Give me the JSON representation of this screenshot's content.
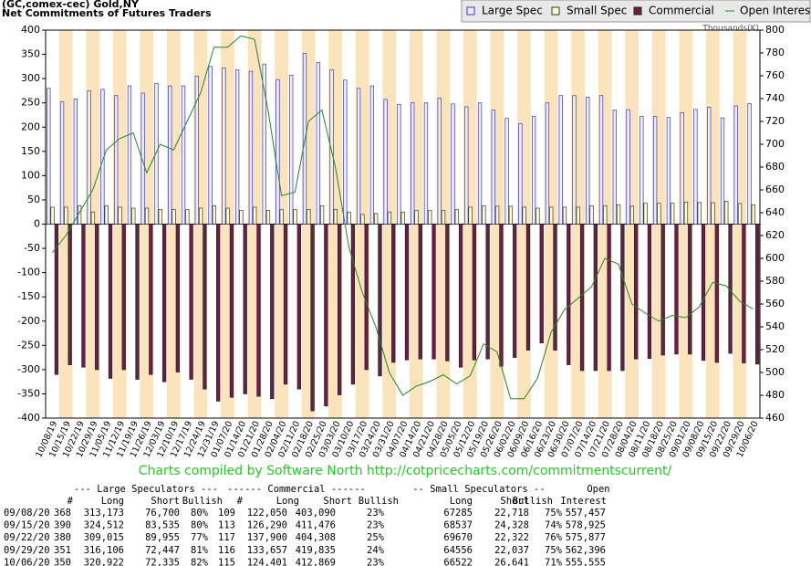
{
  "chart_data": {
    "type": "bar",
    "title": "(GC,comex-cec) Gold,NY",
    "subtitle": "Net Commitments of Futures Traders",
    "y2_label": "Thousands(K)",
    "credit": "Charts compiled by Software North  http://cotpricecharts.com/commitmentscurrent/",
    "categories": [
      "10/08/19",
      "10/15/19",
      "10/22/19",
      "10/29/19",
      "11/05/19",
      "11/12/19",
      "11/19/19",
      "11/26/19",
      "12/03/19",
      "12/10/19",
      "12/17/19",
      "12/24/19",
      "12/31/19",
      "01/07/20",
      "01/14/20",
      "01/21/20",
      "01/28/20",
      "02/04/20",
      "02/11/20",
      "02/18/20",
      "02/25/20",
      "03/03/20",
      "03/10/20",
      "03/17/20",
      "03/24/20",
      "03/31/20",
      "04/07/20",
      "04/14/20",
      "04/21/20",
      "04/28/20",
      "05/05/20",
      "05/12/20",
      "05/19/20",
      "05/26/20",
      "06/02/20",
      "06/09/20",
      "06/16/20",
      "06/23/20",
      "06/30/20",
      "07/07/20",
      "07/14/20",
      "07/21/20",
      "07/28/20",
      "08/04/20",
      "08/11/20",
      "08/18/20",
      "08/25/20",
      "09/01/20",
      "09/08/20",
      "09/15/20",
      "09/22/20",
      "09/29/20",
      "10/06/20"
    ],
    "series": [
      {
        "name": "Large Spec",
        "color": "#3333cc",
        "fill": "#eeeeff",
        "values": [
          280,
          252,
          258,
          275,
          278,
          265,
          285,
          270,
          290,
          285,
          285,
          305,
          325,
          322,
          318,
          315,
          330,
          298,
          307,
          352,
          333,
          318,
          297,
          280,
          285,
          257,
          247,
          250,
          250,
          260,
          248,
          242,
          250,
          235,
          218,
          207,
          222,
          250,
          265,
          265,
          262,
          265,
          235,
          236,
          222,
          222,
          220,
          230,
          236.5,
          241,
          219,
          243.7,
          248.6
        ]
      },
      {
        "name": "Small Spec",
        "color": "#333333",
        "fill": "#ffffcc",
        "values": [
          35,
          35,
          38,
          25,
          38,
          35,
          33,
          33,
          30,
          30,
          30,
          33,
          38,
          33,
          28,
          35,
          28,
          30,
          30,
          30,
          38,
          30,
          25,
          20,
          22,
          25,
          25,
          28,
          28,
          28,
          30,
          35,
          38,
          37,
          37,
          35,
          33,
          35,
          35,
          35,
          38,
          38,
          40,
          37,
          43,
          43,
          43,
          45,
          44.6,
          44.2,
          47.3,
          42.5,
          39.9
        ]
      },
      {
        "name": "Commercial",
        "color": "#222222",
        "fill": "#6b1f48",
        "values": [
          -310,
          -290,
          -295,
          -300,
          -318,
          -300,
          -320,
          -310,
          -325,
          -305,
          -320,
          -340,
          -365,
          -357,
          -350,
          -355,
          -360,
          -330,
          -340,
          -385,
          -375,
          -352,
          -330,
          -300,
          -313,
          -285,
          -280,
          -278,
          -278,
          -282,
          -295,
          -280,
          -278,
          -293,
          -275,
          -260,
          -245,
          -260,
          -290,
          -302,
          -302,
          -302,
          -302,
          -278,
          -277,
          -270,
          -268,
          -268,
          -281,
          -285.2,
          -266.4,
          -286.2,
          -288.5
        ]
      },
      {
        "name": "Open Interest",
        "color": "#228822",
        "type": "line",
        "axis": "y2",
        "values": [
          605,
          620,
          640,
          660,
          695,
          705,
          710,
          675,
          700,
          695,
          720,
          745,
          785,
          785,
          795,
          792,
          730,
          655,
          658,
          720,
          730,
          680,
          610,
          570,
          540,
          500,
          480,
          488,
          492,
          498,
          490,
          497,
          525,
          518,
          477,
          477,
          495,
          535,
          555,
          565,
          575,
          600,
          595,
          560,
          552,
          545,
          550,
          548,
          557.5,
          578.9,
          575.9,
          562.4,
          555.6
        ]
      }
    ],
    "ylim": [
      -400,
      400
    ],
    "yticks": [
      -400,
      -350,
      -300,
      -250,
      -200,
      -150,
      -100,
      -50,
      0,
      50,
      100,
      150,
      200,
      250,
      300,
      350,
      400
    ],
    "y2lim": [
      460,
      800
    ],
    "y2ticks": [
      460,
      480,
      500,
      520,
      540,
      560,
      580,
      600,
      620,
      640,
      660,
      680,
      700,
      720,
      740,
      760,
      780,
      800
    ],
    "legend": "top-right",
    "stripe_color": "#fbe3bb",
    "table": {
      "groups": [
        "--- Large Speculators ---",
        "------ Commercial ------",
        "-- Small Speculators --",
        "Open"
      ],
      "columns": [
        "#",
        "Long",
        "Short",
        "Bullish",
        "#",
        "Long",
        "Short",
        "Bullish",
        "Long",
        "Short",
        "Bullish",
        "Interest"
      ],
      "rows": [
        [
          "09/08/20",
          "368",
          "313,173",
          "76,700",
          "80%",
          "109",
          "122,050",
          "403,090",
          "23%",
          "67285",
          "22,718",
          "75%",
          "557,457"
        ],
        [
          "09/15/20",
          "390",
          "324,512",
          "83,535",
          "80%",
          "113",
          "126,290",
          "411,476",
          "23%",
          "68537",
          "24,328",
          "74%",
          "578,925"
        ],
        [
          "09/22/20",
          "380",
          "309,015",
          "89,955",
          "77%",
          "117",
          "137,900",
          "404,308",
          "25%",
          "69670",
          "22,322",
          "76%",
          "575,877"
        ],
        [
          "09/29/20",
          "351",
          "316,106",
          "72,447",
          "81%",
          "116",
          "133,657",
          "419,835",
          "24%",
          "64556",
          "22,037",
          "75%",
          "562,396"
        ],
        [
          "10/06/20",
          "350",
          "320,922",
          "72,335",
          "82%",
          "115",
          "124,401",
          "412,869",
          "23%",
          "66522",
          "26,641",
          "71%",
          "555,555"
        ]
      ]
    }
  }
}
